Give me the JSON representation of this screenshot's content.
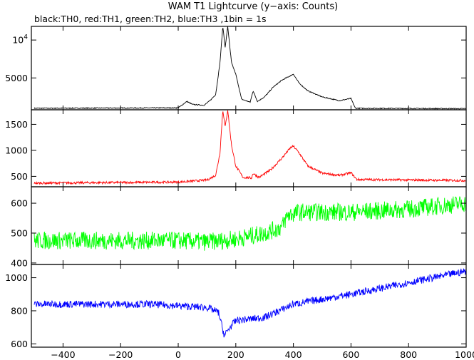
{
  "chart_data": {
    "type": "line",
    "title": "WAM T1 Lightcurve (y−axis: Counts)",
    "subtitle": "black:TH0, red:TH1, green:TH2, blue:TH3 ,1bin = 1s",
    "xlim": [
      -510,
      1000
    ],
    "x_ticks": [
      -400,
      -200,
      0,
      200,
      400,
      600,
      800,
      1000
    ],
    "panels": [
      {
        "name": "TH0",
        "color": "#000000",
        "ylim": [
          800,
          11800
        ],
        "y_ticks": [
          5000,
          10000
        ],
        "y_tick_labels": [
          "5000",
          "10^4"
        ],
        "points": [
          [
            -500,
            1000
          ],
          [
            0,
            1050
          ],
          [
            30,
            1900
          ],
          [
            50,
            1500
          ],
          [
            90,
            1400
          ],
          [
            110,
            2000
          ],
          [
            130,
            2800
          ],
          [
            145,
            7000
          ],
          [
            155,
            11800
          ],
          [
            163,
            9000
          ],
          [
            172,
            11800
          ],
          [
            185,
            7000
          ],
          [
            200,
            5500
          ],
          [
            220,
            2200
          ],
          [
            250,
            1800
          ],
          [
            260,
            3300
          ],
          [
            275,
            1900
          ],
          [
            300,
            2500
          ],
          [
            330,
            3800
          ],
          [
            360,
            4700
          ],
          [
            390,
            5300
          ],
          [
            400,
            5500
          ],
          [
            420,
            4300
          ],
          [
            450,
            3300
          ],
          [
            500,
            2500
          ],
          [
            560,
            2000
          ],
          [
            600,
            2300
          ],
          [
            615,
            1000
          ],
          [
            1000,
            950
          ]
        ],
        "noise": 60
      },
      {
        "name": "TH1",
        "color": "#ff0000",
        "ylim": [
          300,
          1780
        ],
        "y_ticks": [
          500,
          1000,
          1500
        ],
        "y_tick_labels": [
          "500",
          "1000",
          "1500"
        ],
        "points": [
          [
            -500,
            370
          ],
          [
            0,
            390
          ],
          [
            100,
            430
          ],
          [
            130,
            520
          ],
          [
            145,
            950
          ],
          [
            155,
            1780
          ],
          [
            163,
            1450
          ],
          [
            172,
            1780
          ],
          [
            185,
            1100
          ],
          [
            200,
            700
          ],
          [
            225,
            480
          ],
          [
            255,
            470
          ],
          [
            260,
            560
          ],
          [
            280,
            480
          ],
          [
            320,
            620
          ],
          [
            360,
            850
          ],
          [
            390,
            1050
          ],
          [
            400,
            1080
          ],
          [
            420,
            950
          ],
          [
            450,
            700
          ],
          [
            500,
            560
          ],
          [
            560,
            520
          ],
          [
            600,
            570
          ],
          [
            620,
            440
          ],
          [
            1000,
            420
          ]
        ],
        "noise": 22
      },
      {
        "name": "TH2",
        "color": "#00ff00",
        "ylim": [
          395,
          655
        ],
        "y_ticks": [
          400,
          500,
          600
        ],
        "y_tick_labels": [
          "400",
          "500",
          "600"
        ],
        "points": [
          [
            -500,
            475
          ],
          [
            0,
            475
          ],
          [
            100,
            470
          ],
          [
            200,
            480
          ],
          [
            300,
            500
          ],
          [
            360,
            520
          ],
          [
            380,
            560
          ],
          [
            420,
            570
          ],
          [
            600,
            570
          ],
          [
            800,
            580
          ],
          [
            1000,
            600
          ]
        ],
        "noise": 30
      },
      {
        "name": "TH3",
        "color": "#0000ff",
        "ylim": [
          580,
          1080
        ],
        "y_ticks": [
          600,
          800,
          1000
        ],
        "y_tick_labels": [
          "600",
          "800",
          "1000"
        ],
        "points": [
          [
            -500,
            840
          ],
          [
            -100,
            840
          ],
          [
            100,
            820
          ],
          [
            140,
            790
          ],
          [
            160,
            650
          ],
          [
            180,
            700
          ],
          [
            200,
            740
          ],
          [
            300,
            760
          ],
          [
            400,
            840
          ],
          [
            600,
            900
          ],
          [
            800,
            970
          ],
          [
            1000,
            1040
          ]
        ],
        "noise": 22
      }
    ]
  }
}
